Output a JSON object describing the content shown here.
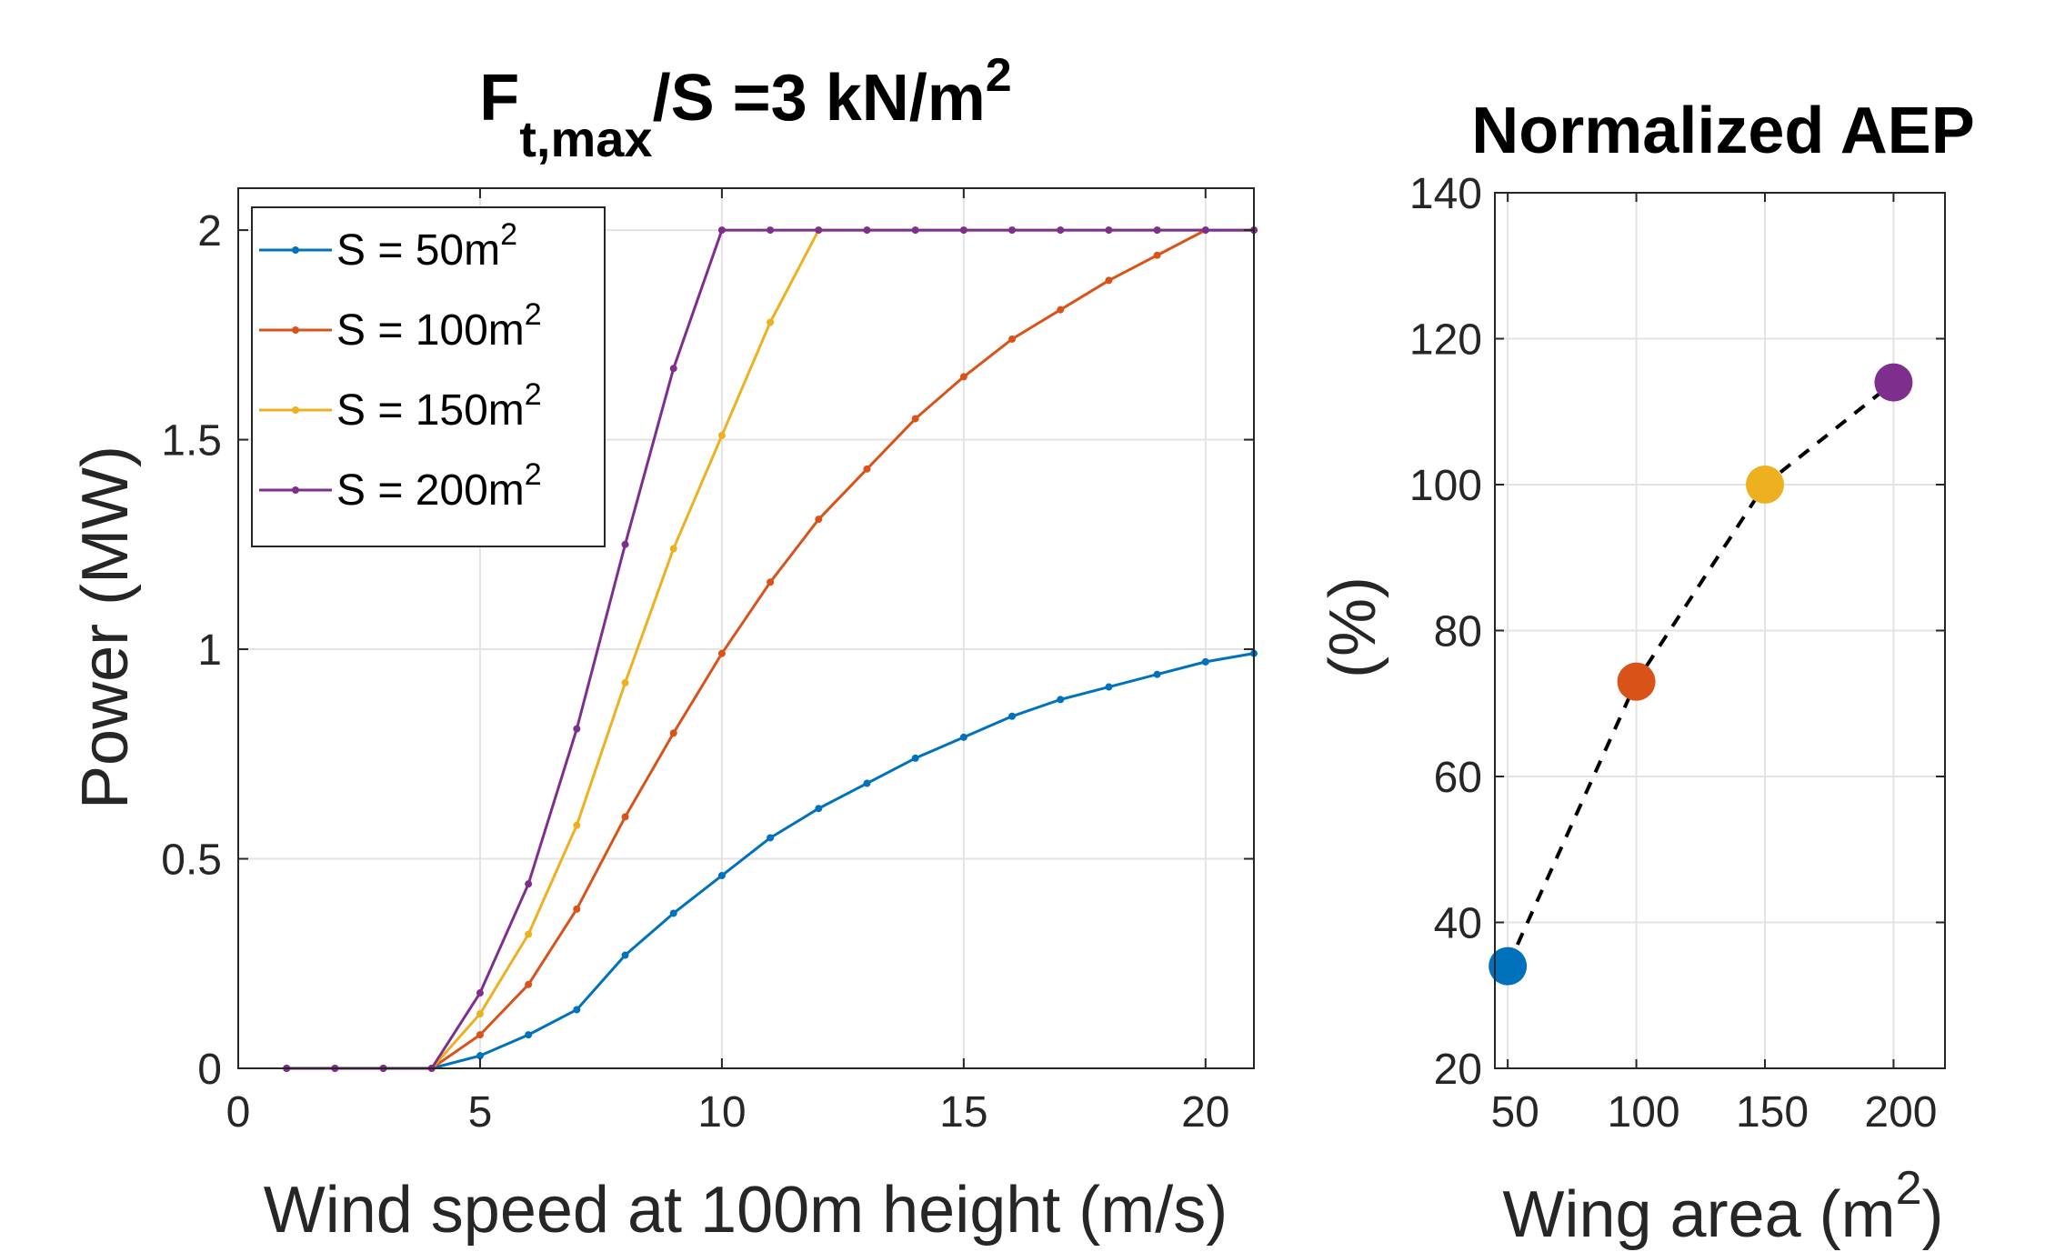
{
  "chart_data": [
    {
      "type": "line",
      "title": {
        "base": "F",
        "sub": "t,max",
        "rest": "/S =3 kN/m",
        "sup": "2"
      },
      "xlabel": "Wind speed at 100m height (m/s)",
      "ylabel": "Power (MW)",
      "xlim": [
        0,
        21
      ],
      "ylim": [
        0,
        2.1
      ],
      "xticks": [
        0,
        5,
        10,
        15,
        20
      ],
      "xtick_labels": [
        "0",
        "5",
        "10",
        "15",
        "20"
      ],
      "yticks": [
        0,
        0.5,
        1,
        1.5,
        2
      ],
      "ytick_labels": [
        "0",
        "0.5",
        "1",
        "1.5",
        "2"
      ],
      "grid": true,
      "legend_position": "top-left",
      "x": [
        1,
        2,
        3,
        4,
        5,
        6,
        7,
        8,
        9,
        10,
        11,
        12,
        13,
        14,
        15,
        16,
        17,
        18,
        19,
        20,
        21
      ],
      "series": [
        {
          "name": "S = 50m",
          "name_sup": "2",
          "color": "#0072BD",
          "values": [
            0,
            0,
            0,
            0,
            0.03,
            0.08,
            0.14,
            0.27,
            0.37,
            0.46,
            0.55,
            0.62,
            0.68,
            0.74,
            0.79,
            0.84,
            0.88,
            0.91,
            0.94,
            0.97,
            0.99
          ]
        },
        {
          "name": "S = 100m",
          "name_sup": "2",
          "color": "#D95319",
          "values": [
            0,
            0,
            0,
            0,
            0.08,
            0.2,
            0.38,
            0.6,
            0.8,
            0.99,
            1.16,
            1.31,
            1.43,
            1.55,
            1.65,
            1.74,
            1.81,
            1.88,
            1.94,
            2.0,
            2.0
          ]
        },
        {
          "name": "S = 150m",
          "name_sup": "2",
          "color": "#EDB120",
          "values": [
            0,
            0,
            0,
            0,
            0.13,
            0.32,
            0.58,
            0.92,
            1.24,
            1.51,
            1.78,
            2.0,
            2.0,
            2.0,
            2.0,
            2.0,
            2.0,
            2.0,
            2.0,
            2.0,
            2.0
          ]
        },
        {
          "name": "S = 200m",
          "name_sup": "2",
          "color": "#7E2F8E",
          "values": [
            0,
            0,
            0,
            0,
            0.18,
            0.44,
            0.81,
            1.25,
            1.67,
            2.0,
            2.0,
            2.0,
            2.0,
            2.0,
            2.0,
            2.0,
            2.0,
            2.0,
            2.0,
            2.0,
            2.0
          ]
        }
      ]
    },
    {
      "type": "scatter",
      "title": {
        "base": "Normalized AEP"
      },
      "xlabel": {
        "base": "Wing area (m",
        "sup": "2",
        "rest": ")"
      },
      "ylabel": "(%)",
      "xlim": [
        45,
        220
      ],
      "ylim": [
        20,
        140
      ],
      "xticks": [
        50,
        100,
        150,
        200
      ],
      "xtick_labels": [
        "50",
        "100",
        "150",
        "200"
      ],
      "yticks": [
        20,
        40,
        60,
        80,
        100,
        120,
        140
      ],
      "ytick_labels": [
        "20",
        "40",
        "60",
        "80",
        "100",
        "120",
        "140"
      ],
      "grid": true,
      "connector_line": "dashed black",
      "points": [
        {
          "x": 50,
          "y": 34,
          "color": "#0072BD"
        },
        {
          "x": 100,
          "y": 73,
          "color": "#D95319"
        },
        {
          "x": 150,
          "y": 100,
          "color": "#EDB120"
        },
        {
          "x": 200,
          "y": 114,
          "color": "#7E2F8E"
        }
      ]
    }
  ]
}
